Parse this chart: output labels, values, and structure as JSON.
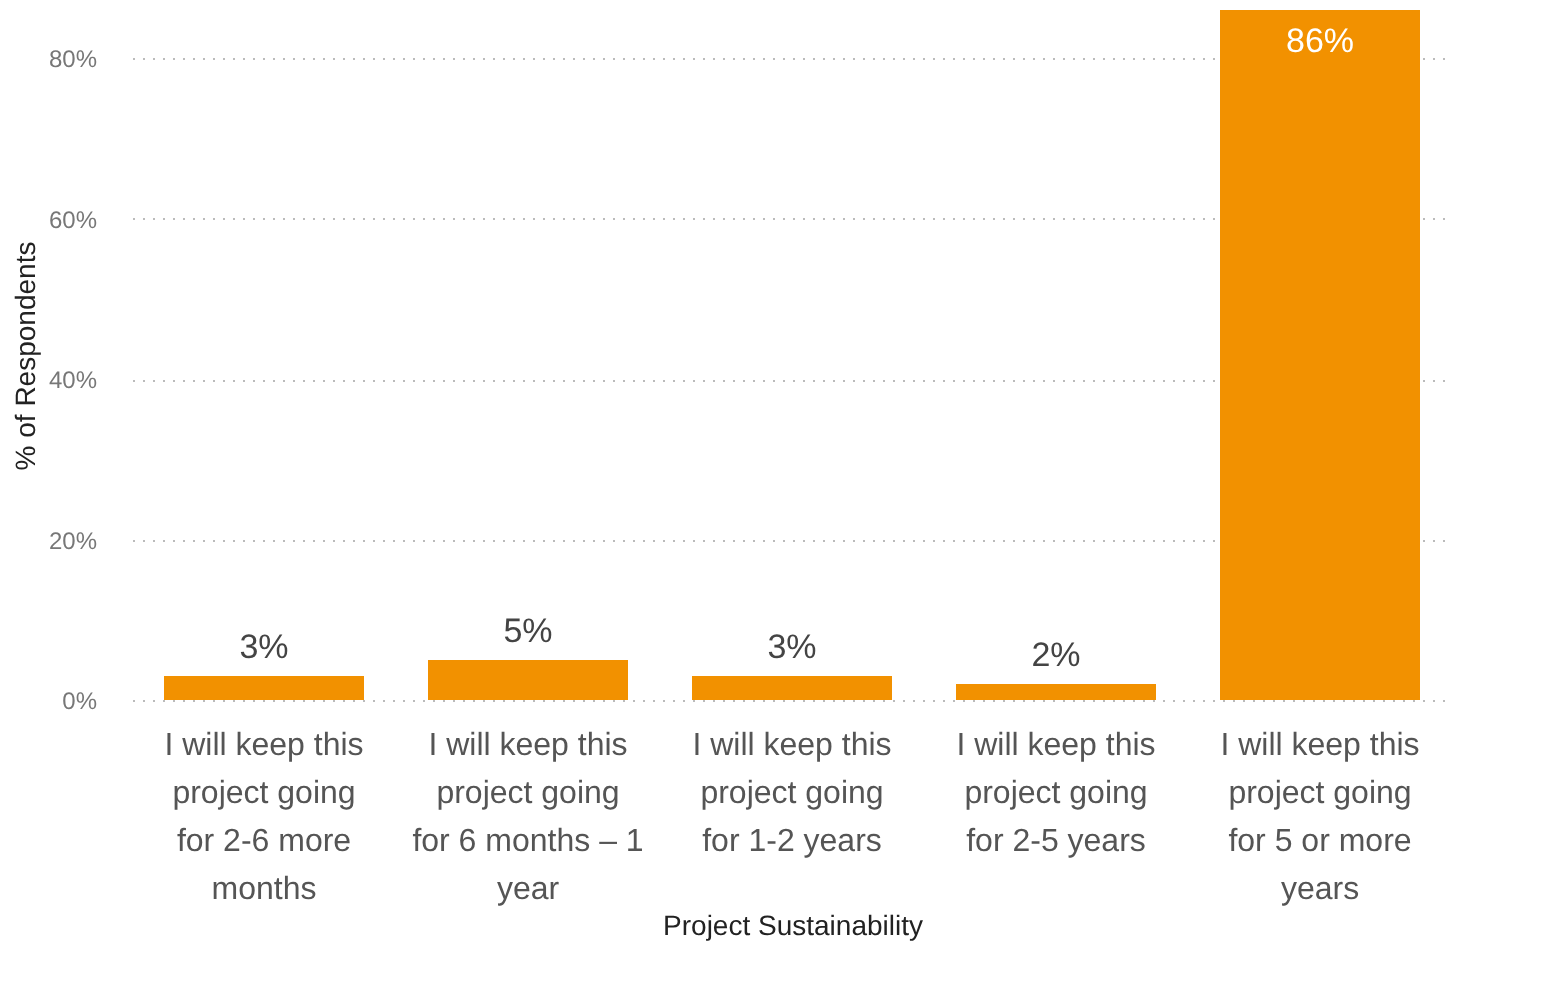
{
  "chart_data": {
    "type": "bar",
    "categories": [
      "I will keep this project going for 2-6 more months",
      "I will keep this project going for 6 months – 1 year",
      "I will keep this project going for 1-2 years",
      "I will keep this project going for 2-5 years",
      "I will keep this project going for 5 or more years"
    ],
    "values": [
      3,
      5,
      3,
      2,
      86
    ],
    "value_labels": [
      "3%",
      "5%",
      "3%",
      "2%",
      "86%"
    ],
    "color": "#f29100",
    "xlabel": "Project Sustainability",
    "ylabel": "% of Respondents",
    "ylim": [
      0,
      86
    ],
    "yticks": [
      {
        "value": 0,
        "label": "0%"
      },
      {
        "value": 20,
        "label": "20%"
      },
      {
        "value": 40,
        "label": "40%"
      },
      {
        "value": 60,
        "label": "60%"
      },
      {
        "value": 80,
        "label": "80%"
      }
    ],
    "grid": "y"
  }
}
